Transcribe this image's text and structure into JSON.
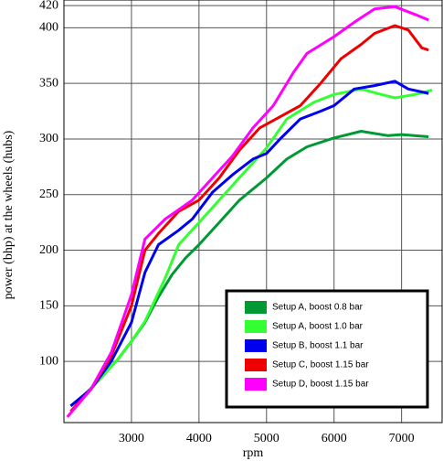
{
  "chart_data": {
    "type": "line",
    "x_label": "rpm",
    "y_label": "power (bhp) at the wheels (hubs)",
    "xlim": [
      2000,
      7600
    ],
    "ylim": [
      45,
      425
    ],
    "xticks": [
      3000,
      4000,
      5000,
      6000,
      7000
    ],
    "yticks": [
      100,
      150,
      200,
      250,
      300,
      350,
      400,
      420
    ],
    "grid": true,
    "legend": "lower right",
    "series": [
      {
        "name": "Setup A, boost 0.8 bar",
        "color": "#009933",
        "x": [
          2100,
          2300,
          2500,
          2800,
          3000,
          3200,
          3400,
          3600,
          3800,
          4000,
          4300,
          4600,
          5000,
          5300,
          5600,
          6000,
          6400,
          6800,
          7000,
          7400
        ],
        "values": [
          60,
          70,
          82,
          102,
          118,
          135,
          158,
          178,
          193,
          205,
          225,
          245,
          265,
          282,
          293,
          301,
          307,
          303,
          304,
          302
        ]
      },
      {
        "name": "Setup A, boost 1.0 bar",
        "color": "#33ff33",
        "x": [
          2100,
          2300,
          2500,
          2800,
          3000,
          3200,
          3500,
          3700,
          4000,
          4300,
          4700,
          5000,
          5300,
          5700,
          6000,
          6400,
          6700,
          6900,
          7200,
          7450
        ],
        "values": [
          60,
          70,
          82,
          102,
          118,
          136,
          175,
          205,
          225,
          245,
          272,
          292,
          318,
          333,
          340,
          345,
          340,
          337,
          340,
          344
        ]
      },
      {
        "name": "Setup B, boost 1.1 bar",
        "color": "#0000ee",
        "x": [
          2100,
          2400,
          2700,
          3000,
          3200,
          3400,
          3700,
          3900,
          4200,
          4500,
          4800,
          5000,
          5200,
          5500,
          5800,
          6000,
          6300,
          6600,
          6900,
          7100,
          7400
        ],
        "values": [
          60,
          75,
          100,
          135,
          180,
          205,
          218,
          228,
          252,
          268,
          282,
          287,
          300,
          318,
          325,
          330,
          345,
          348,
          352,
          345,
          341
        ]
      },
      {
        "name": "Setup C, boost 1.15 bar",
        "color": "#ee0000",
        "x": [
          2100,
          2400,
          2700,
          3000,
          3200,
          3400,
          3700,
          4000,
          4300,
          4600,
          4900,
          5200,
          5500,
          5800,
          6100,
          6400,
          6600,
          6900,
          7100,
          7300,
          7400
        ],
        "values": [
          55,
          75,
          105,
          150,
          200,
          215,
          235,
          245,
          265,
          290,
          310,
          320,
          330,
          350,
          372,
          385,
          395,
          402,
          398,
          382,
          380
        ]
      },
      {
        "name": "Setup D, boost 1.15 bar",
        "color": "#ff00ff",
        "x": [
          2050,
          2400,
          2700,
          3000,
          3200,
          3500,
          3900,
          4200,
          4500,
          4800,
          5100,
          5400,
          5600,
          6000,
          6300,
          6600,
          6900,
          7200,
          7400
        ],
        "values": [
          50,
          75,
          108,
          160,
          210,
          228,
          245,
          265,
          285,
          310,
          330,
          360,
          377,
          392,
          405,
          417,
          419,
          412,
          407
        ]
      }
    ]
  }
}
